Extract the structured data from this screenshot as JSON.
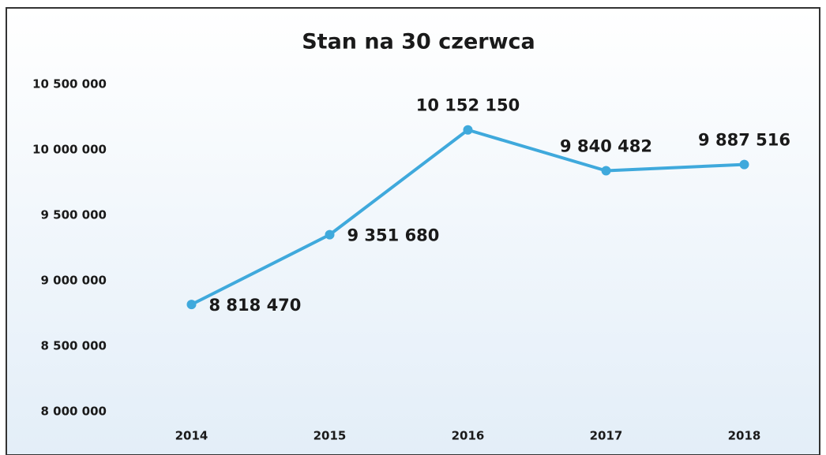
{
  "chart_data": {
    "type": "line",
    "title": "Stan na 30 czerwca",
    "categories": [
      "2014",
      "2015",
      "2016",
      "2017",
      "2018"
    ],
    "series": [
      {
        "name": null,
        "color": "#3fa9dc",
        "values": [
          8818470,
          9351680,
          10152150,
          9840482,
          9887516
        ],
        "value_labels": [
          "8 818 470",
          "9 351 680",
          "10 152 150",
          "9 840 482",
          "9 887 516"
        ]
      }
    ],
    "ylim": [
      8000000,
      10500000
    ],
    "yticks": [
      {
        "value": 8000000,
        "label": "8 000 000"
      },
      {
        "value": 8500000,
        "label": "8 500 000"
      },
      {
        "value": 9000000,
        "label": "9 000 000"
      },
      {
        "value": 9500000,
        "label": "9 500 000"
      },
      {
        "value": 10000000,
        "label": "10 000 000"
      },
      {
        "value": 10500000,
        "label": "10 500 000"
      }
    ],
    "grid": false
  }
}
